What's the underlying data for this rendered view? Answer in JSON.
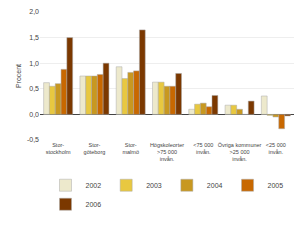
{
  "chart_data": {
    "type": "bar",
    "ylabel": "Procent",
    "categories": [
      "Stor-\nstockholm",
      "Stor-\ngöteborg",
      "Stor-\nmalmö",
      "Högskoleorter\n>75 000\ninvån.",
      "<75 000\ninvån.",
      "Övriga kommuner\n>25 000\ninvån.",
      "<25 000\ninvån."
    ],
    "series": [
      {
        "name": "2002",
        "color": "#ede9cc",
        "values": [
          0.62,
          0.75,
          0.93,
          0.63,
          0.1,
          0.18,
          0.36
        ]
      },
      {
        "name": "2003",
        "color": "#e8c840",
        "values": [
          0.55,
          0.75,
          0.7,
          0.63,
          0.2,
          0.18,
          -0.02
        ]
      },
      {
        "name": "2004",
        "color": "#c89820",
        "values": [
          0.6,
          0.75,
          0.82,
          0.55,
          0.22,
          0.1,
          -0.05
        ]
      },
      {
        "name": "2005",
        "color": "#c86800",
        "values": [
          0.88,
          0.78,
          0.85,
          0.55,
          0.15,
          0.0,
          -0.28
        ]
      },
      {
        "name": "2006",
        "color": "#7b3800",
        "values": [
          1.5,
          1.0,
          1.65,
          0.8,
          0.37,
          0.26,
          -0.03
        ]
      }
    ],
    "ylim": [
      -0.5,
      2.0
    ],
    "yticks": [
      {
        "value": -0.5,
        "label": "-0,5"
      },
      {
        "value": 0.0,
        "label": "0,0"
      },
      {
        "value": 0.5,
        "label": "0,5"
      },
      {
        "value": 1.0,
        "label": "1,0"
      },
      {
        "value": 1.5,
        "label": "1,5"
      },
      {
        "value": 2.0,
        "label": "2,0"
      }
    ],
    "grid": true,
    "legend": "bottom"
  }
}
